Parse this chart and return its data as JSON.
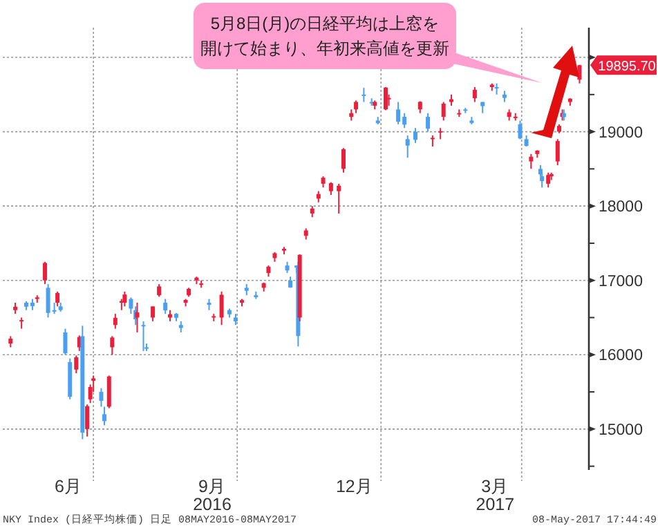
{
  "chart_data": {
    "type": "candlestick",
    "x": [
      "2016-05-09",
      "2016-05-12",
      "2016-05-16",
      "2016-05-19",
      "2016-05-23",
      "2016-05-26",
      "2016-05-31",
      "2016-06-02",
      "2016-06-06",
      "2016-06-08",
      "2016-06-10",
      "2016-06-13",
      "2016-06-16",
      "2016-06-20",
      "2016-06-22",
      "2016-06-24",
      "2016-06-27",
      "2016-06-29",
      "2016-07-01",
      "2016-07-06",
      "2016-07-08",
      "2016-07-11",
      "2016-07-13",
      "2016-07-15",
      "2016-07-19",
      "2016-07-21",
      "2016-07-25",
      "2016-07-28",
      "2016-07-29",
      "2016-08-02",
      "2016-08-04",
      "2016-08-08",
      "2016-08-12",
      "2016-08-16",
      "2016-08-19",
      "2016-08-23",
      "2016-08-26",
      "2016-08-29",
      "2016-08-31",
      "2016-09-05",
      "2016-09-08",
      "2016-09-13",
      "2016-09-16",
      "2016-09-21",
      "2016-09-26",
      "2016-09-30",
      "2016-10-04",
      "2016-10-07",
      "2016-10-13",
      "2016-10-18",
      "2016-10-21",
      "2016-10-25",
      "2016-10-31",
      "2016-11-02",
      "2016-11-04",
      "2016-11-08",
      "2016-11-09",
      "2016-11-10",
      "2016-11-14",
      "2016-11-18",
      "2016-11-22",
      "2016-11-25",
      "2016-11-30",
      "2016-12-05",
      "2016-12-08",
      "2016-12-13",
      "2016-12-16",
      "2016-12-21",
      "2016-12-26",
      "2016-12-28",
      "2016-12-30",
      "2017-01-04",
      "2017-01-06",
      "2017-01-12",
      "2017-01-16",
      "2017-01-18",
      "2017-01-23",
      "2017-01-26",
      "2017-01-31",
      "2017-02-03",
      "2017-02-08",
      "2017-02-10",
      "2017-02-15",
      "2017-02-20",
      "2017-02-24",
      "2017-02-28",
      "2017-03-02",
      "2017-03-07",
      "2017-03-13",
      "2017-03-16",
      "2017-03-21",
      "2017-03-24",
      "2017-03-28",
      "2017-03-31",
      "2017-04-04",
      "2017-04-07",
      "2017-04-11",
      "2017-04-13",
      "2017-04-14",
      "2017-04-18",
      "2017-04-20",
      "2017-04-24",
      "2017-04-25",
      "2017-04-27",
      "2017-04-28",
      "2017-05-02",
      "2017-05-08"
    ],
    "ohlc": [
      [
        16150,
        16250,
        16100,
        16216
      ],
      [
        16600,
        16700,
        16550,
        16646
      ],
      [
        16450,
        16500,
        16350,
        16466
      ],
      [
        16700,
        16720,
        16600,
        16646
      ],
      [
        16700,
        16750,
        16600,
        16654
      ],
      [
        16750,
        16800,
        16700,
        16772
      ],
      [
        17000,
        17250,
        16950,
        17235
      ],
      [
        16900,
        16950,
        16500,
        16562
      ],
      [
        16600,
        16700,
        16550,
        16580
      ],
      [
        16700,
        16850,
        16650,
        16830
      ],
      [
        16650,
        16700,
        16580,
        16601
      ],
      [
        16300,
        16350,
        16000,
        16019
      ],
      [
        15900,
        15950,
        15400,
        15434
      ],
      [
        15800,
        15990,
        15750,
        15965
      ],
      [
        16100,
        16260,
        16050,
        16238
      ],
      [
        16250,
        16390,
        14864,
        14952
      ],
      [
        15000,
        15330,
        14900,
        15309
      ],
      [
        15400,
        15600,
        15350,
        15566
      ],
      [
        15650,
        15720,
        15500,
        15682
      ],
      [
        15500,
        15550,
        15300,
        15379
      ],
      [
        15200,
        15300,
        15050,
        15107
      ],
      [
        15300,
        15720,
        15280,
        15708
      ],
      [
        16100,
        16250,
        16000,
        16231
      ],
      [
        16400,
        16550,
        16350,
        16497
      ],
      [
        16700,
        16750,
        16600,
        16723
      ],
      [
        16700,
        16850,
        16650,
        16810
      ],
      [
        16750,
        16770,
        16550,
        16620
      ],
      [
        16600,
        16650,
        16400,
        16476
      ],
      [
        16500,
        16700,
        16300,
        16569
      ],
      [
        16400,
        16450,
        16050,
        16391
      ],
      [
        16100,
        16150,
        16050,
        16083
      ],
      [
        16500,
        16650,
        16450,
        16650
      ],
      [
        16800,
        16950,
        16780,
        16919
      ],
      [
        16700,
        16750,
        16550,
        16596
      ],
      [
        16500,
        16600,
        16450,
        16545
      ],
      [
        16550,
        16560,
        16450,
        16497
      ],
      [
        16400,
        16450,
        16300,
        16360
      ],
      [
        16700,
        16750,
        16650,
        16737
      ],
      [
        16800,
        16900,
        16780,
        16887
      ],
      [
        17000,
        17050,
        16950,
        17037
      ],
      [
        16950,
        17000,
        16900,
        16958
      ],
      [
        16700,
        16750,
        16600,
        16672
      ],
      [
        16500,
        16550,
        16450,
        16519
      ],
      [
        16500,
        16850,
        16400,
        16807
      ],
      [
        16600,
        16620,
        16500,
        16544
      ],
      [
        16500,
        16550,
        16400,
        16449
      ],
      [
        16700,
        16750,
        16650,
        16735
      ],
      [
        16900,
        16950,
        16800,
        16860
      ],
      [
        16800,
        16850,
        16750,
        16774
      ],
      [
        16900,
        16970,
        16850,
        16963
      ],
      [
        17100,
        17200,
        17050,
        17184
      ],
      [
        17300,
        17380,
        17250,
        17365
      ],
      [
        17400,
        17450,
        17350,
        17425
      ],
      [
        17200,
        17250,
        17100,
        17134
      ],
      [
        17000,
        17050,
        16900,
        16905
      ],
      [
        17200,
        17200,
        17100,
        17171
      ],
      [
        17200,
        17250,
        16111,
        16251
      ],
      [
        16500,
        17350,
        16450,
        17344
      ],
      [
        17600,
        17700,
        17550,
        17672
      ],
      [
        17900,
        18000,
        17850,
        17967
      ],
      [
        18100,
        18200,
        18050,
        18162
      ],
      [
        18300,
        18400,
        18250,
        18381
      ],
      [
        18200,
        18320,
        18150,
        18308
      ],
      [
        18200,
        18300,
        17900,
        18274
      ],
      [
        18500,
        18780,
        18450,
        18765
      ],
      [
        19200,
        19300,
        19150,
        19250
      ],
      [
        19300,
        19420,
        19250,
        19401
      ],
      [
        19500,
        19590,
        19400,
        19494
      ],
      [
        19400,
        19450,
        19350,
        19396
      ],
      [
        19350,
        19420,
        19300,
        19401
      ],
      [
        19150,
        19200,
        19100,
        19114
      ],
      [
        19300,
        19600,
        19290,
        19594
      ],
      [
        19450,
        19500,
        19350,
        19454
      ],
      [
        19300,
        19400,
        19100,
        19134
      ],
      [
        19200,
        19250,
        19050,
        19095
      ],
      [
        18900,
        18950,
        18650,
        18813
      ],
      [
        19000,
        19050,
        18850,
        18891
      ],
      [
        19300,
        19410,
        19250,
        19402
      ],
      [
        19200,
        19250,
        19000,
        19041
      ],
      [
        18900,
        18950,
        18800,
        18918
      ],
      [
        19000,
        19050,
        18900,
        19007
      ],
      [
        19200,
        19400,
        19150,
        19378
      ],
      [
        19400,
        19500,
        19350,
        19437
      ],
      [
        19250,
        19300,
        19200,
        19251
      ],
      [
        19300,
        19320,
        19250,
        19283
      ],
      [
        19150,
        19200,
        19100,
        19118
      ],
      [
        19450,
        19600,
        19400,
        19564
      ],
      [
        19400,
        19400,
        19250,
        19344
      ],
      [
        19600,
        19650,
        19550,
        19633
      ],
      [
        19600,
        19650,
        19500,
        19590
      ],
      [
        19500,
        19550,
        19400,
        19455
      ],
      [
        19200,
        19300,
        19150,
        19262
      ],
      [
        19200,
        19250,
        19150,
        19202
      ],
      [
        19100,
        19150,
        18900,
        18909
      ],
      [
        18900,
        18950,
        18800,
        18810
      ],
      [
        18600,
        18700,
        18500,
        18664
      ],
      [
        18700,
        18750,
        18650,
        18747
      ],
      [
        18500,
        18550,
        18400,
        18426
      ],
      [
        18400,
        18450,
        18250,
        18335
      ],
      [
        18300,
        18450,
        18250,
        18418
      ],
      [
        18400,
        18450,
        18350,
        18430
      ],
      [
        18600,
        18900,
        18550,
        18875
      ],
      [
        19000,
        19100,
        18980,
        19079
      ],
      [
        19200,
        19300,
        19150,
        19252
      ],
      [
        19250,
        19300,
        19150,
        19196
      ],
      [
        19400,
        19450,
        19350,
        19445
      ],
      [
        19700,
        19900,
        19650,
        19895.7
      ]
    ],
    "xlim": [
      "2016-05-04",
      "2017-05-14"
    ],
    "xticks": [
      {
        "value": "2016-06-15",
        "label": "6月"
      },
      {
        "value": "2016-09-15",
        "label": "9月\n2016"
      },
      {
        "value": "2016-12-15",
        "label": "12月"
      },
      {
        "value": "2017-03-15",
        "label": "3月\n2017"
      }
    ],
    "ylim": [
      14450,
      20400
    ],
    "yticks": [
      15000,
      16000,
      17000,
      18000,
      19000,
      {
        "value": 20000,
        "label": null
      }
    ],
    "grid": "y",
    "ref_lines": [
      {
        "axis": "x",
        "value": "2016-07-01",
        "label": null,
        "line_style": "dotted"
      },
      {
        "axis": "x",
        "value": "2016-10-01",
        "label": null,
        "line_style": "dotted"
      },
      {
        "axis": "x",
        "value": "2017-01-01",
        "label": null,
        "line_style": "dotted"
      },
      {
        "axis": "x",
        "value": "2017-04-01",
        "label": null,
        "line_style": "dotted"
      }
    ],
    "annotations": [
      "5月8日(月)の日経平均は上窓を開けて始まり、年初来高値を更新",
      {
        "text": "19895.70",
        "x": "2017-05-08",
        "y": 19895.7
      },
      "NKY Index (日経平均株価) 日足 08MAY2016-08MAY2017",
      "08-May-2017 17:44:49"
    ]
  }
}
